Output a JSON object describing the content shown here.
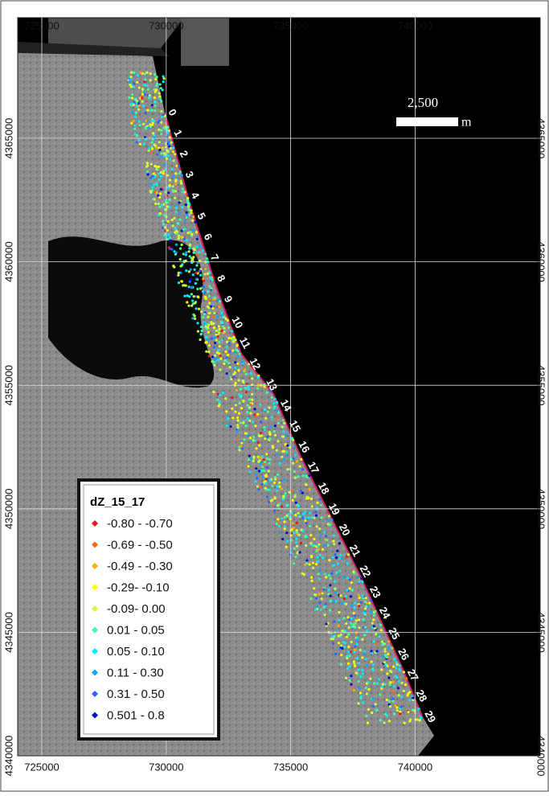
{
  "map": {
    "xticks": [
      725000,
      730000,
      735000,
      740000
    ],
    "yticks": [
      4340000,
      4345000,
      4350000,
      4355000,
      4360000,
      4365000
    ],
    "scale_bar": {
      "label": "2,500",
      "unit": "m"
    },
    "transects": [
      0,
      1,
      2,
      3,
      4,
      5,
      6,
      7,
      8,
      9,
      10,
      11,
      12,
      13,
      14,
      15,
      16,
      17,
      18,
      19,
      20,
      21,
      22,
      23,
      24,
      25,
      26,
      27,
      28,
      29
    ],
    "legend": {
      "title": "dZ_15_17",
      "items": [
        {
          "label": "-0.80 - -0.70",
          "color": "#e8141c"
        },
        {
          "label": "-0.69 - -0.50",
          "color": "#ff6a10"
        },
        {
          "label": "-0.49 - -0.30",
          "color": "#ffaa00"
        },
        {
          "label": "-0.29- -0.10",
          "color": "#ffff00"
        },
        {
          "label": "-0.09- 0.00",
          "color": "#c8ff40"
        },
        {
          "label": "0.01 - 0.05",
          "color": "#40ffa0"
        },
        {
          "label": "0.05 - 0.10",
          "color": "#00f0ff"
        },
        {
          "label": "0.11 - 0.30",
          "color": "#00a8ff"
        },
        {
          "label": "0.31 - 0.50",
          "color": "#3060ff"
        },
        {
          "label": "0.501 - 0.8",
          "color": "#0010c8"
        }
      ]
    }
  }
}
